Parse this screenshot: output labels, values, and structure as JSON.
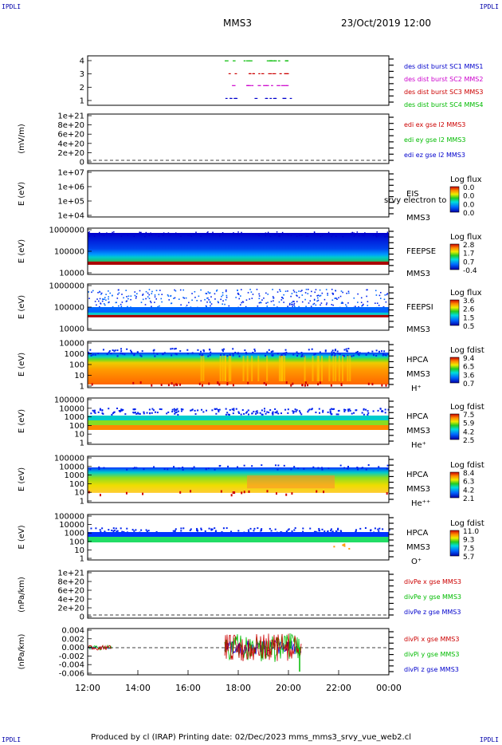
{
  "corners": {
    "tl": "IPDLI",
    "tr": "IPDLI",
    "bl": "IPDLI",
    "br": "IPDLI"
  },
  "header": {
    "mission": "MMS3",
    "datetime": "23/Oct/2019 12:00"
  },
  "footer": {
    "text": "Produced by cl (IRAP)   Printing date: 02/Dec/2023   mms_mms3_srvy_vue_web2.cl"
  },
  "chart_data": [
    {
      "type": "scatter",
      "panel": "burst",
      "yticks": [
        "4",
        "3",
        "2",
        "1"
      ],
      "legend": [
        {
          "label": "des dist burst SC1 MMS1",
          "color": "#0000cc"
        },
        {
          "label": "des dist burst SC2 MMS2",
          "color": "#cc00cc"
        },
        {
          "label": "des dist burst SC3 MMS3",
          "color": "#cc0000"
        },
        {
          "label": "des dist burst SC4 MMS4",
          "color": "#00bb00"
        }
      ]
    },
    {
      "type": "line",
      "panel": "edi",
      "ylabel": "(mV/m)",
      "yticks": [
        "1e+21",
        "8e+20",
        "6e+20",
        "4e+20",
        "2e+20",
        "0"
      ],
      "legend": [
        {
          "label": "edi ex gse l2 MMS3",
          "color": "#cc0000"
        },
        {
          "label": "edi ey gse l2 MMS3",
          "color": "#00bb00"
        },
        {
          "label": "edi ez gse l2 MMS3",
          "color": "#0000cc"
        }
      ]
    },
    {
      "type": "heatmap",
      "panel": "eis",
      "ylabel": "E (eV)",
      "yticks": [
        "1e+07",
        "1e+06",
        "1e+05",
        "1e+04"
      ],
      "labels": [
        "EIS",
        "MMS3"
      ],
      "overlay": "srvy electron to",
      "colorbar_title": "Log flux",
      "colorbar_ticks": [
        "0.0",
        "0.0",
        "0.0",
        "0.0"
      ]
    },
    {
      "type": "heatmap",
      "panel": "feepse",
      "ylabel": "E (eV)",
      "yticks": [
        "1000000",
        "100000",
        "10000"
      ],
      "labels": [
        "FEEPSE",
        "MMS3"
      ],
      "colorbar_title": "Log flux",
      "colorbar_ticks": [
        "2.8",
        "1.7",
        "0.7",
        "-0.4"
      ]
    },
    {
      "type": "heatmap",
      "panel": "feepsi",
      "ylabel": "E (eV)",
      "yticks": [
        "1000000",
        "100000",
        "10000"
      ],
      "labels": [
        "FEEPSI",
        "MMS3"
      ],
      "colorbar_title": "Log flux",
      "colorbar_ticks": [
        "3.6",
        "2.6",
        "1.5",
        "0.5"
      ]
    },
    {
      "type": "heatmap",
      "panel": "hpca_h",
      "ylabel": "E (eV)",
      "yticks": [
        "10000",
        "1000",
        "100",
        "10",
        "1"
      ],
      "labels": [
        "HPCA",
        "MMS3",
        "H⁺"
      ],
      "colorbar_title": "Log fdist",
      "colorbar_ticks": [
        "9.4",
        "6.5",
        "3.6",
        "0.7"
      ]
    },
    {
      "type": "heatmap",
      "panel": "hpca_he",
      "ylabel": "E (eV)",
      "yticks": [
        "100000",
        "10000",
        "1000",
        "100",
        "10",
        "1"
      ],
      "labels": [
        "HPCA",
        "MMS3",
        "He⁺"
      ],
      "colorbar_title": "Log fdist",
      "colorbar_ticks": [
        "7.5",
        "5.9",
        "4.2",
        "2.5"
      ]
    },
    {
      "type": "heatmap",
      "panel": "hpca_hepp",
      "ylabel": "E (eV)",
      "yticks": [
        "100000",
        "10000",
        "1000",
        "100",
        "10",
        "1"
      ],
      "labels": [
        "HPCA",
        "MMS3",
        "He⁺⁺"
      ],
      "colorbar_title": "Log fdist",
      "colorbar_ticks": [
        "8.4",
        "6.3",
        "4.2",
        "2.1"
      ]
    },
    {
      "type": "heatmap",
      "panel": "hpca_o",
      "ylabel": "E (eV)",
      "yticks": [
        "100000",
        "10000",
        "1000",
        "100",
        "10",
        "1"
      ],
      "labels": [
        "HPCA",
        "MMS3",
        "O⁺"
      ],
      "colorbar_title": "Log fdist",
      "colorbar_ticks": [
        "11.0",
        "9.3",
        "7.5",
        "5.7"
      ]
    },
    {
      "type": "line",
      "panel": "divpe",
      "ylabel": "(nPa/km)",
      "yticks": [
        "1e+21",
        "8e+20",
        "6e+20",
        "4e+20",
        "2e+20",
        "0"
      ],
      "legend": [
        {
          "label": "divPe x gse MMS3",
          "color": "#cc0000"
        },
        {
          "label": "divPe y gse MMS3",
          "color": "#00bb00"
        },
        {
          "label": "divPe z gse MMS3",
          "color": "#0000cc"
        }
      ]
    },
    {
      "type": "line",
      "panel": "divpi",
      "ylabel": "(nPa/km)",
      "yticks": [
        "0.004",
        "0.002",
        "0.000",
        "-0.002",
        "-0.004",
        "-0.006"
      ],
      "legend": [
        {
          "label": "divPi x gse MMS3",
          "color": "#cc0000"
        },
        {
          "label": "divPi y gse MMS3",
          "color": "#00bb00"
        },
        {
          "label": "divPi z gse MMS3",
          "color": "#0000cc"
        }
      ]
    }
  ],
  "xaxis": {
    "ticks": [
      "12:00",
      "14:00",
      "16:00",
      "18:00",
      "20:00",
      "22:00",
      "00:00"
    ]
  }
}
